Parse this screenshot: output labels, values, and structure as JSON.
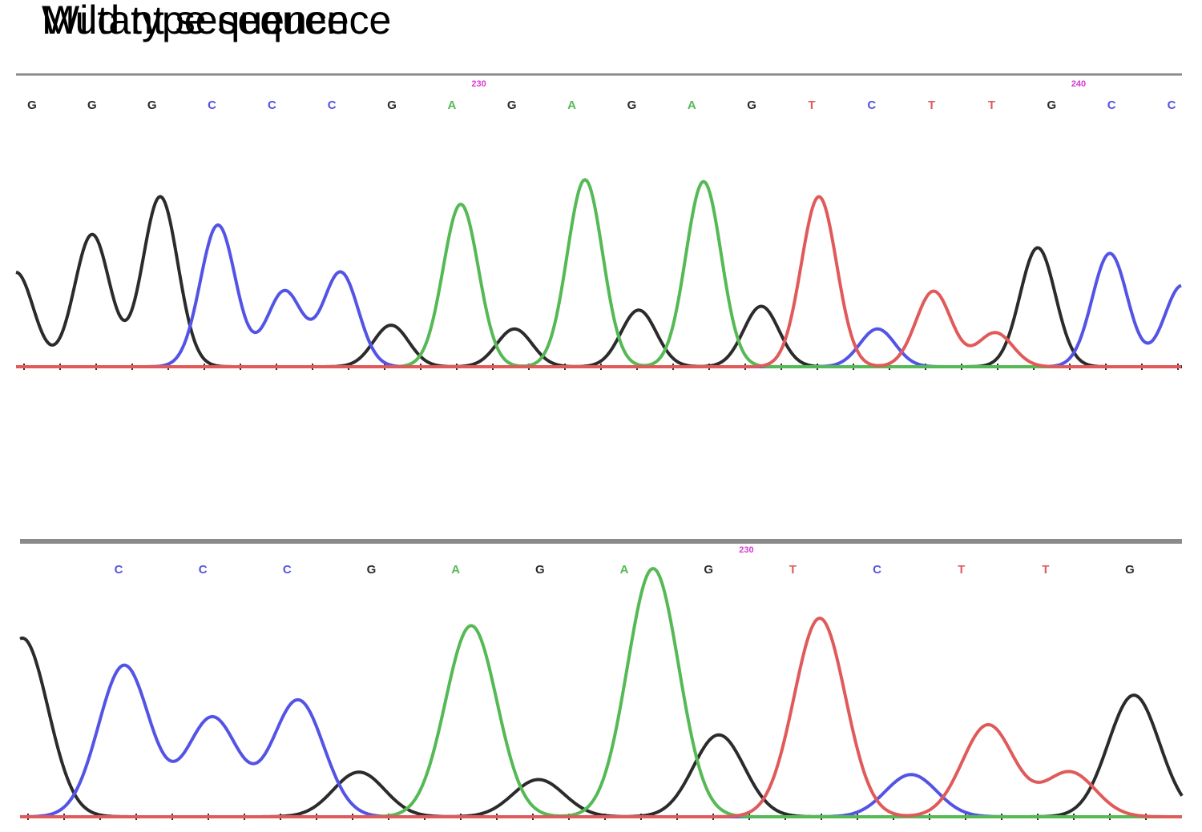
{
  "colors": {
    "G": "#2b2b2b",
    "C": "#5353e6",
    "A": "#55b955",
    "T": "#e05a5a",
    "position": "#d43ad4",
    "rule": "#8a8a8a"
  },
  "chart_data": [
    {
      "type": "line",
      "title": "Wild type sequence",
      "bases": [
        "G",
        "G",
        "G",
        "C",
        "C",
        "C",
        "G",
        "A",
        "G",
        "A",
        "G",
        "A",
        "G",
        "T",
        "C",
        "T",
        "T",
        "G",
        "C",
        "C"
      ],
      "position_labels": [
        {
          "after_base_index": 7,
          "text": "230"
        },
        {
          "after_base_index": 17,
          "text": "240"
        }
      ],
      "y_scale": [
        0,
        100
      ],
      "series": [
        {
          "base": "G",
          "peaks": [
            [
              20,
              50
            ],
            [
              115,
              70
            ],
            [
              200,
              90
            ],
            [
              488,
              22
            ],
            [
              642,
              20
            ],
            [
              797,
              30
            ],
            [
              950,
              32
            ],
            [
              1295,
              63
            ],
            [
              1475,
              0
            ]
          ]
        },
        {
          "base": "C",
          "peaks": [
            [
              272,
              75
            ],
            [
              355,
              40
            ],
            [
              425,
              50
            ],
            [
              1095,
              20
            ],
            [
              1385,
              60
            ],
            [
              1475,
              43
            ]
          ]
        },
        {
          "base": "A",
          "peaks": [
            [
              575,
              86
            ],
            [
              730,
              99
            ],
            [
              878,
              98
            ]
          ]
        },
        {
          "base": "T",
          "peaks": [
            [
              1022,
              90
            ],
            [
              1165,
              40
            ],
            [
              1242,
              18
            ]
          ]
        }
      ]
    },
    {
      "type": "line",
      "title": "Mutant sequence",
      "bases": [
        "C",
        "C",
        "C",
        "G",
        "A",
        "G",
        "A",
        "G",
        "T",
        "C",
        "T",
        "T",
        "G"
      ],
      "position_labels": [
        {
          "after_base_index": 7,
          "text": "230"
        }
      ],
      "y_scale": [
        0,
        100
      ],
      "series": [
        {
          "base": "G",
          "peaks": [
            [
              28,
              72
            ],
            [
              448,
              18
            ],
            [
              672,
              15
            ],
            [
              897,
              33
            ],
            [
              1415,
              49
            ]
          ]
        },
        {
          "base": "C",
          "peaks": [
            [
              155,
              61
            ],
            [
              265,
              40
            ],
            [
              372,
              47
            ],
            [
              1137,
              17
            ]
          ]
        },
        {
          "base": "A",
          "peaks": [
            [
              588,
              77
            ],
            [
              815,
              100
            ]
          ]
        },
        {
          "base": "T",
          "peaks": [
            [
              1023,
              80
            ],
            [
              1233,
              37
            ],
            [
              1335,
              18
            ]
          ]
        }
      ]
    }
  ]
}
